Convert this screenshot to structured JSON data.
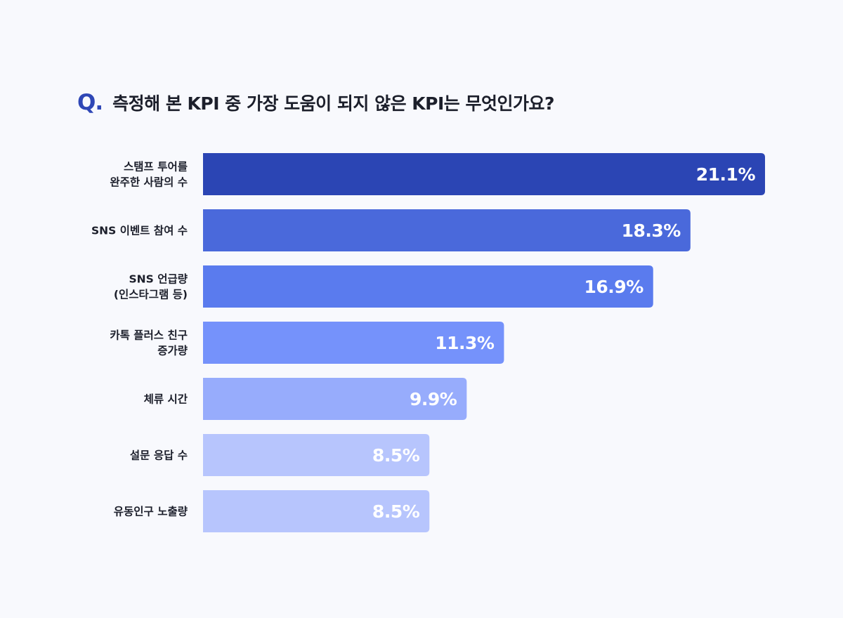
{
  "title": {
    "q_mark": "Q.",
    "question": "측정해 본 KPI 중 가장 도움이 되지 않은 KPI는 무엇인가요?"
  },
  "chart_data": {
    "type": "bar",
    "orientation": "horizontal",
    "title": "측정해 본 KPI 중 가장 도움이 되지 않은 KPI는 무엇인가요?",
    "categories": [
      [
        "스탬프 투어를",
        "완주한 사람의 수"
      ],
      [
        "SNS 이벤트 참여 수"
      ],
      [
        "SNS 언급량",
        "(인스타그램 등)"
      ],
      [
        "카톡 플러스 친구",
        "증가량"
      ],
      [
        "체류 시간"
      ],
      [
        "설문 응답 수"
      ],
      [
        "유동인구 노출량"
      ]
    ],
    "values": [
      21.1,
      18.3,
      16.9,
      11.3,
      9.9,
      8.5,
      8.5
    ],
    "value_labels": [
      "21.1%",
      "18.3%",
      "16.9%",
      "11.3%",
      "9.9%",
      "8.5%",
      "8.5%"
    ],
    "colors": [
      "#2b45b4",
      "#4a69db",
      "#5a7bee",
      "#7592fb",
      "#97acfc",
      "#b7c5fd",
      "#b7c5fd"
    ],
    "xlim": [
      0,
      21.1
    ],
    "grid": false,
    "legend": "none"
  }
}
